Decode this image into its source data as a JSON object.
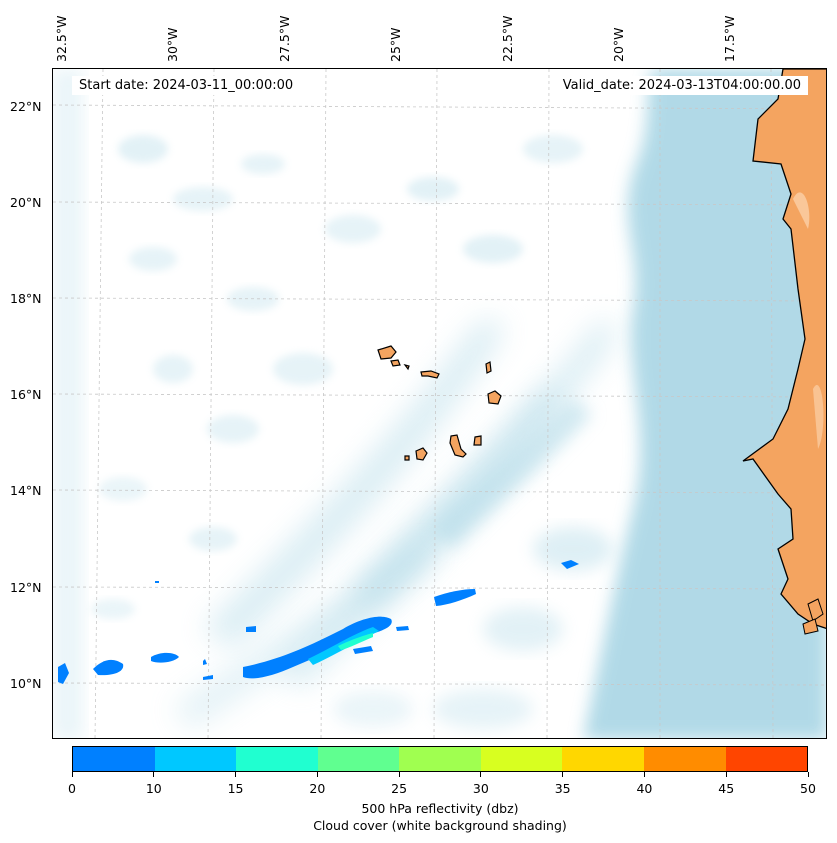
{
  "map": {
    "start_date": "Start date: 2024-03-11_00:00:00",
    "valid_date": "Valid_date: 2024-03-13T04:00:00.00",
    "lon_labels": [
      "32.5°W",
      "30°W",
      "27.5°W",
      "25°W",
      "22.5°W",
      "20°W",
      "17.5°W"
    ],
    "lat_labels": [
      "22°N",
      "20°N",
      "18°N",
      "16°N",
      "14°N",
      "12°N",
      "10°N"
    ],
    "colors": {
      "cloud": "#add8e6",
      "land": "#f4a460",
      "coastline": "#000000",
      "gridline": "#c8c8c8"
    }
  },
  "colorbar": {
    "ticks": [
      "0",
      "10",
      "15",
      "20",
      "25",
      "30",
      "35",
      "40",
      "45",
      "50"
    ],
    "colors": [
      "#0080ff",
      "#00c8ff",
      "#20ffd0",
      "#60ff90",
      "#a0ff50",
      "#d8ff20",
      "#ffd700",
      "#ff8c00",
      "#ff4500"
    ],
    "label_line1": "500 hPa reflectivity (dbz)",
    "label_line2": "Cloud cover (white background shading)"
  },
  "icons": {
    "map_type": "reflectivity-cloud-cover-map"
  }
}
